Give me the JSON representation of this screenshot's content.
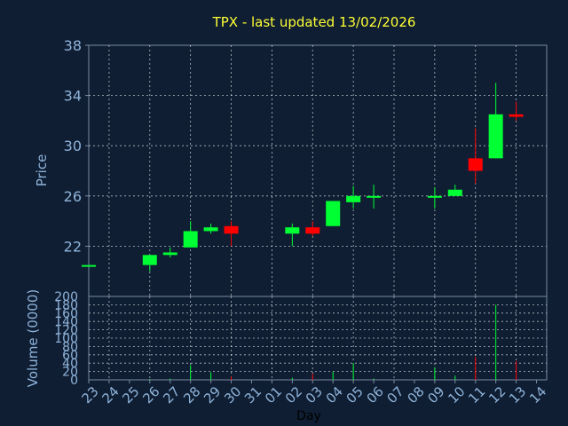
{
  "chart_data": {
    "type": "candlestick",
    "title": "TPX - last updated 13/02/2026",
    "xlabel": "Day",
    "price": {
      "ylabel": "Price",
      "ylim": [
        18,
        38
      ],
      "yticks": [
        22,
        26,
        30,
        34,
        38
      ],
      "grid": true
    },
    "volume": {
      "ylabel": "Volume (0000)",
      "ylim": [
        0,
        200
      ],
      "yticks": [
        0,
        20,
        40,
        60,
        80,
        100,
        120,
        140,
        160,
        180,
        200
      ],
      "grid": true
    },
    "x_labels": [
      "23",
      "24",
      "25",
      "26",
      "27",
      "28",
      "29",
      "30",
      "31",
      "01",
      "02",
      "03",
      "04",
      "05",
      "06",
      "07",
      "08",
      "09",
      "10",
      "11",
      "12",
      "13",
      "14"
    ],
    "candles": [
      {
        "x": "23",
        "open": 20.5,
        "close": 20.5,
        "high": 20.5,
        "low": 20.5,
        "volume": 0
      },
      {
        "x": "26",
        "open": 20.5,
        "close": 21.3,
        "high": 21.3,
        "low": 20.0,
        "volume": 2
      },
      {
        "x": "27",
        "open": 21.3,
        "close": 21.5,
        "high": 21.9,
        "low": 21.1,
        "volume": 3
      },
      {
        "x": "28",
        "open": 21.9,
        "close": 23.2,
        "high": 24.0,
        "low": 21.9,
        "volume": 35
      },
      {
        "x": "29",
        "open": 23.2,
        "close": 23.5,
        "high": 23.8,
        "low": 23.0,
        "volume": 18
      },
      {
        "x": "30",
        "open": 23.6,
        "close": 23.0,
        "high": 24.0,
        "low": 22.0,
        "volume": 8
      },
      {
        "x": "02",
        "open": 23.0,
        "close": 23.5,
        "high": 23.8,
        "low": 22.0,
        "volume": 5
      },
      {
        "x": "03",
        "open": 23.5,
        "close": 23.0,
        "high": 24.0,
        "low": 22.8,
        "volume": 15
      },
      {
        "x": "04",
        "open": 23.6,
        "close": 25.6,
        "high": 25.6,
        "low": 23.6,
        "volume": 20
      },
      {
        "x": "05",
        "open": 25.5,
        "close": 26.0,
        "high": 26.8,
        "low": 25.0,
        "volume": 40
      },
      {
        "x": "06",
        "open": 26.0,
        "close": 26.0,
        "high": 26.9,
        "low": 25.0,
        "volume": 3
      },
      {
        "x": "09",
        "open": 26.0,
        "close": 26.0,
        "high": 26.7,
        "low": 25.0,
        "volume": 30
      },
      {
        "x": "10",
        "open": 26.0,
        "close": 26.5,
        "high": 26.9,
        "low": 26.0,
        "volume": 10
      },
      {
        "x": "11",
        "open": 29.0,
        "close": 28.0,
        "high": 31.4,
        "low": 27.0,
        "volume": 55
      },
      {
        "x": "12",
        "open": 29.0,
        "close": 32.5,
        "high": 35.0,
        "low": 29.0,
        "volume": 180
      },
      {
        "x": "13",
        "open": 32.5,
        "close": 32.3,
        "high": 33.5,
        "low": 32.0,
        "volume": 45
      }
    ],
    "colors": {
      "up": "#00ff33",
      "down": "#ff0000",
      "background": "#0f1e33",
      "axis_text": "#8fb3d9",
      "title": "#ffff33",
      "grid": "#ffffff"
    }
  }
}
